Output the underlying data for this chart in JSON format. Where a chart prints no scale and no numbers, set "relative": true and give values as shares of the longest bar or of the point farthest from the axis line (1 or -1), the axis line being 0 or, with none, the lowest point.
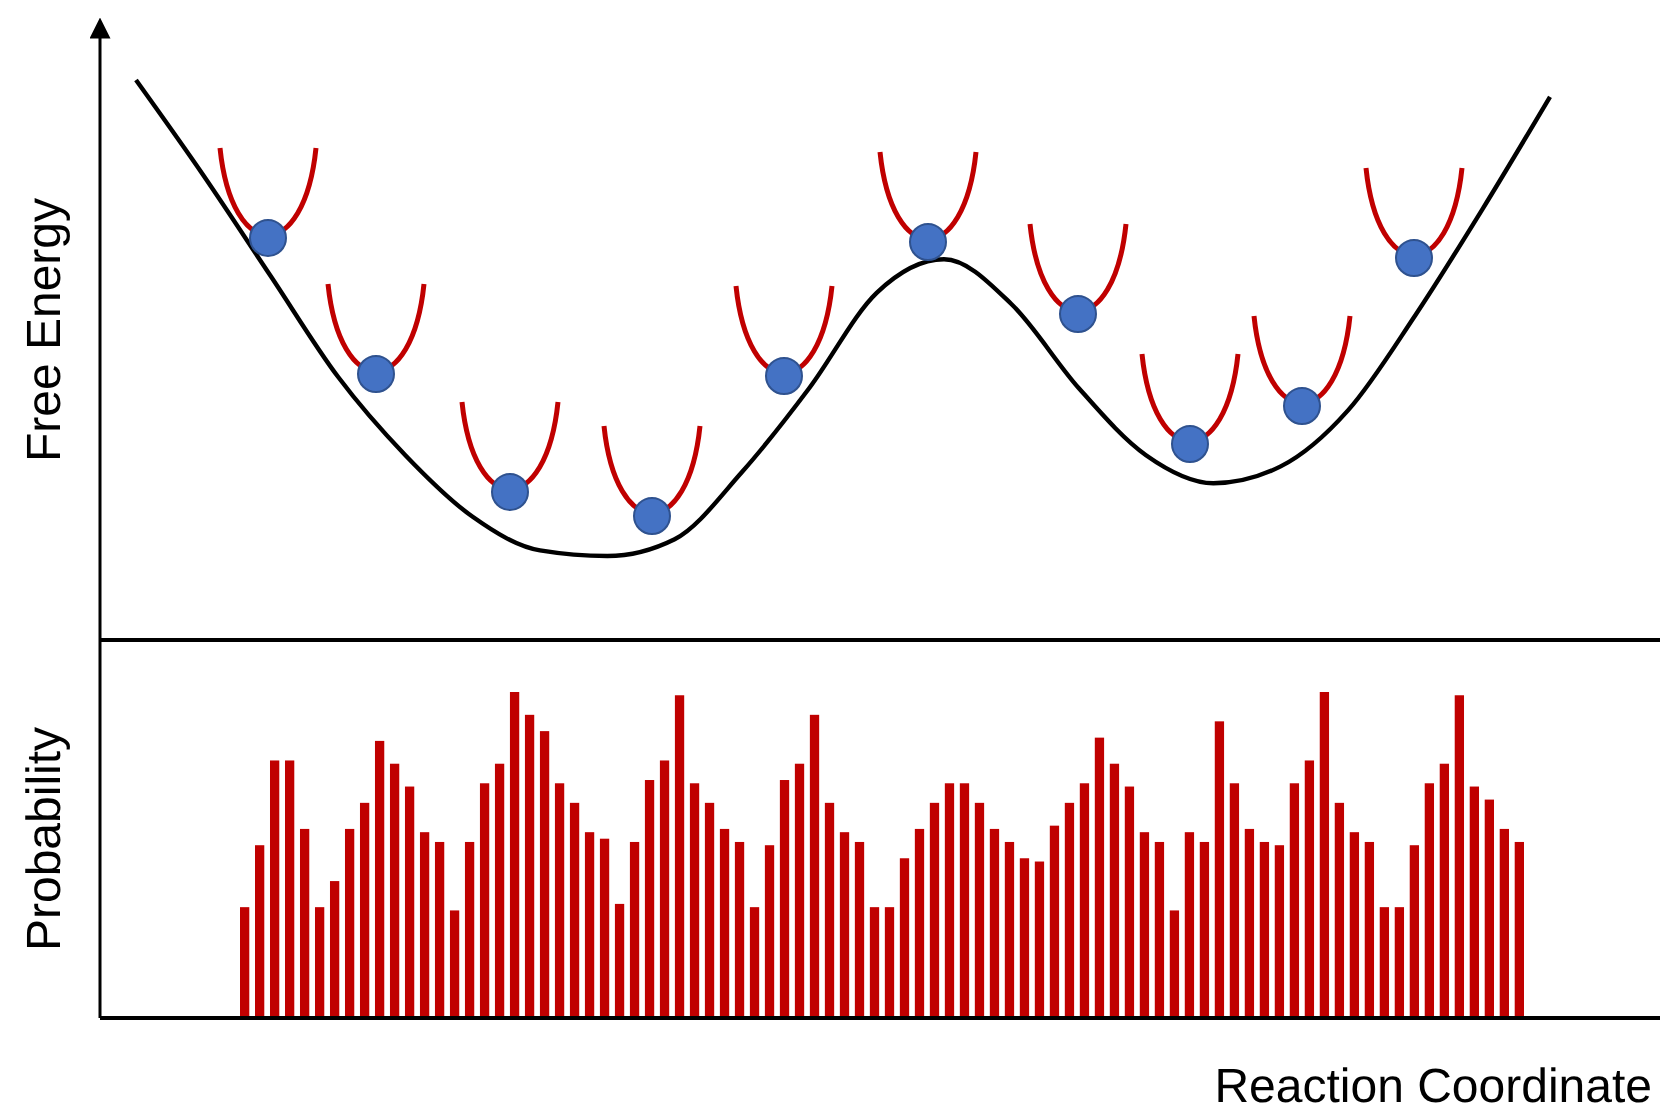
{
  "chart_data": [
    {
      "type": "line",
      "relative": true,
      "ylabel": "Free Energy",
      "color": "#000000",
      "categories": [
        null,
        null,
        null,
        null,
        null,
        null,
        null,
        null,
        null,
        null,
        null,
        null,
        null,
        null,
        null,
        null,
        null,
        null,
        null,
        null,
        null,
        null
      ],
      "values": [
        1.0,
        0.83,
        0.65,
        0.47,
        0.33,
        0.22,
        0.16,
        0.15,
        0.18,
        0.3,
        0.45,
        0.62,
        0.68,
        0.6,
        0.45,
        0.33,
        0.28,
        0.31,
        0.41,
        0.58,
        0.77,
        0.97
      ]
    },
    {
      "type": "bar",
      "relative": true,
      "ylabel": "Probability",
      "xlabel": "Reaction Coordinate",
      "color": "#c00000",
      "categories": [
        null,
        null,
        null,
        null,
        null,
        null,
        null,
        null,
        null,
        null,
        null,
        null,
        null,
        null,
        null,
        null,
        null,
        null,
        null,
        null,
        null,
        null,
        null,
        null,
        null,
        null,
        null,
        null,
        null,
        null,
        null,
        null,
        null,
        null,
        null,
        null,
        null,
        null,
        null,
        null,
        null,
        null,
        null,
        null,
        null,
        null,
        null,
        null,
        null,
        null,
        null,
        null,
        null,
        null,
        null,
        null,
        null,
        null,
        null,
        null,
        null,
        null,
        null,
        null,
        null,
        null,
        null,
        null,
        null,
        null,
        null,
        null,
        null,
        null,
        null,
        null,
        null,
        null,
        null,
        null,
        null,
        null,
        null,
        null,
        null,
        null
      ],
      "values": [
        0.34,
        0.53,
        0.79,
        0.79,
        0.58,
        0.34,
        0.42,
        0.58,
        0.66,
        0.85,
        0.78,
        0.71,
        0.57,
        0.54,
        0.33,
        0.54,
        0.72,
        0.78,
        1.0,
        0.93,
        0.88,
        0.72,
        0.66,
        0.57,
        0.55,
        0.35,
        0.54,
        0.73,
        0.79,
        0.99,
        0.72,
        0.66,
        0.58,
        0.54,
        0.34,
        0.53,
        0.73,
        0.78,
        0.93,
        0.66,
        0.57,
        0.54,
        0.34,
        0.34,
        0.49,
        0.58,
        0.66,
        0.72,
        0.72,
        0.66,
        0.58,
        0.54,
        0.49,
        0.48,
        0.59,
        0.66,
        0.72,
        0.86,
        0.78,
        0.71,
        0.57,
        0.54,
        0.33,
        0.57,
        0.54,
        0.91,
        0.72,
        0.58,
        0.54,
        0.53,
        0.72,
        0.79,
        1.0,
        0.66,
        0.57,
        0.54,
        0.34,
        0.34,
        0.53,
        0.72,
        0.78,
        0.99,
        0.71,
        0.67,
        0.58,
        0.54
      ]
    }
  ]
}
